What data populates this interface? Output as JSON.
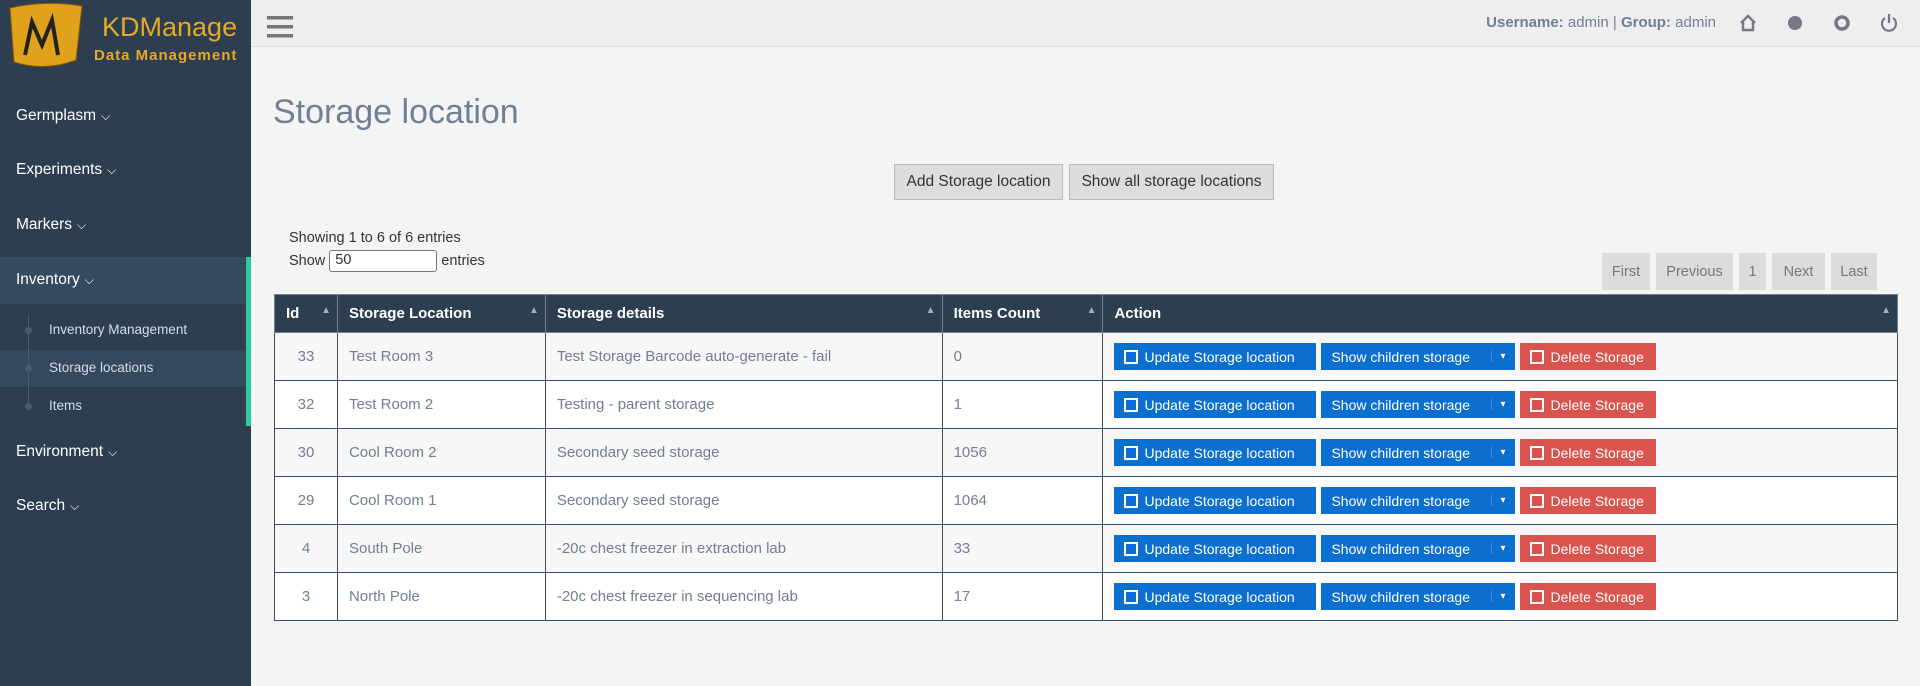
{
  "logo": {
    "title": "KDManage",
    "subtitle": "Data Management"
  },
  "header": {
    "username_label": "Username:",
    "username": "admin",
    "separator": "|",
    "group_label": "Group:",
    "group": "admin"
  },
  "sidebar": {
    "items": [
      {
        "label": "Germplasm"
      },
      {
        "label": "Experiments"
      },
      {
        "label": "Markers"
      },
      {
        "label": "Inventory",
        "children": [
          "Inventory Management",
          "Storage locations",
          "Items"
        ]
      },
      {
        "label": "Environment"
      },
      {
        "label": "Search"
      }
    ]
  },
  "page": {
    "title": "Storage location",
    "buttons": [
      "Add Storage location",
      "Show all storage locations"
    ],
    "info": "Showing 1 to 6 of 6 entries",
    "length_prefix": "Show",
    "length_value": "50",
    "length_suffix": "entries",
    "pagination": [
      "First",
      "Previous",
      "1",
      "Next",
      "Last"
    ]
  },
  "table": {
    "columns": [
      "Id",
      "Storage Location",
      "Storage details",
      "Items Count",
      "Action"
    ],
    "rows": [
      [
        33,
        "Test Room 3",
        "Test Storage Barcode auto-generate - fail",
        0
      ],
      [
        32,
        "Test Room 2",
        "Testing - parent storage",
        1
      ],
      [
        30,
        "Cool Room 2",
        "Secondary seed storage",
        1056
      ],
      [
        29,
        "Cool Room 1",
        "Secondary seed storage",
        1064
      ],
      [
        4,
        "South Pole",
        "-20c chest freezer in extraction lab",
        33
      ],
      [
        3,
        "North Pole",
        "-20c chest freezer in sequencing lab",
        17
      ]
    ],
    "actions": [
      "Update Storage location",
      "Show children storage",
      "Delete Storage"
    ]
  }
}
